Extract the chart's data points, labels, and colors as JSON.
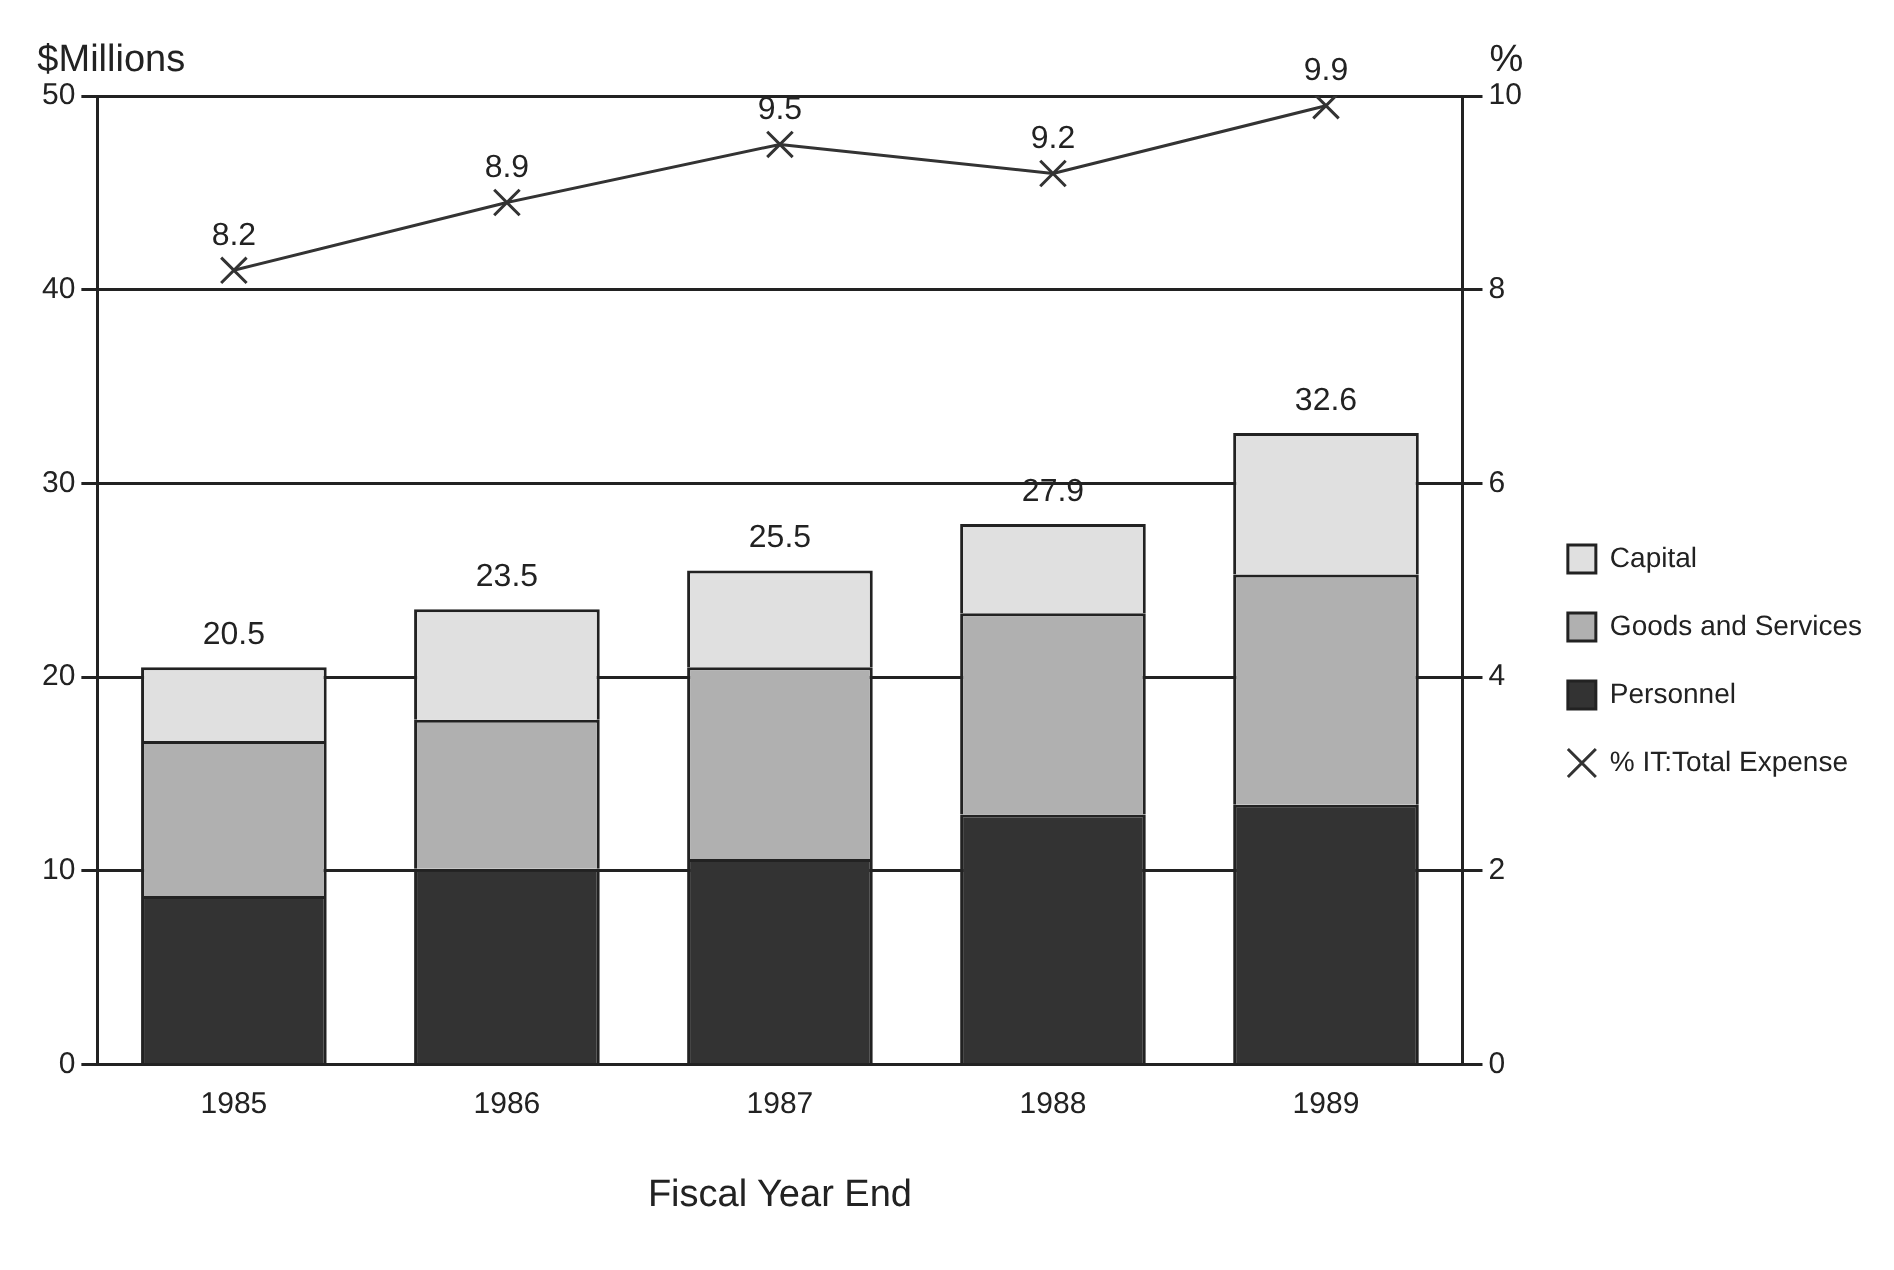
{
  "chart_data": {
    "type": "bar",
    "stacked": true,
    "xlabel": "Fiscal Year End",
    "ylabel": "$Millions",
    "y2label": "%",
    "categories": [
      "1985",
      "1986",
      "1987",
      "1988",
      "1989"
    ],
    "series": [
      {
        "name": "Personnel",
        "color": "#333333",
        "values": [
          8.7,
          10.1,
          10.6,
          12.9,
          13.4
        ]
      },
      {
        "name": "Goods and Services",
        "color": "#b0b0b0",
        "values": [
          8.0,
          7.7,
          9.9,
          10.4,
          11.9
        ]
      },
      {
        "name": "Capital",
        "color": "#e0e0e0",
        "values": [
          3.8,
          5.7,
          5.0,
          4.6,
          7.3
        ]
      },
      {
        "name": "% IT:Total Expense",
        "type": "line",
        "axis": "y2",
        "color": "#333333",
        "values": [
          8.2,
          8.9,
          9.5,
          9.2,
          9.9
        ],
        "value_labels": [
          "8.2",
          "8.9",
          "9.5",
          "9.2",
          "9.9"
        ]
      }
    ],
    "totals": [
      "20.5",
      "23.5",
      "25.5",
      "27.9",
      "32.6"
    ],
    "ylim": [
      0,
      50
    ],
    "yticks": [
      0,
      10,
      20,
      30,
      40,
      50
    ],
    "y2lim": [
      0,
      10
    ],
    "y2ticks": [
      0,
      2,
      4,
      6,
      8,
      10
    ],
    "grid": "y",
    "legend": "right",
    "marker": "cross",
    "line_style": "solid"
  }
}
